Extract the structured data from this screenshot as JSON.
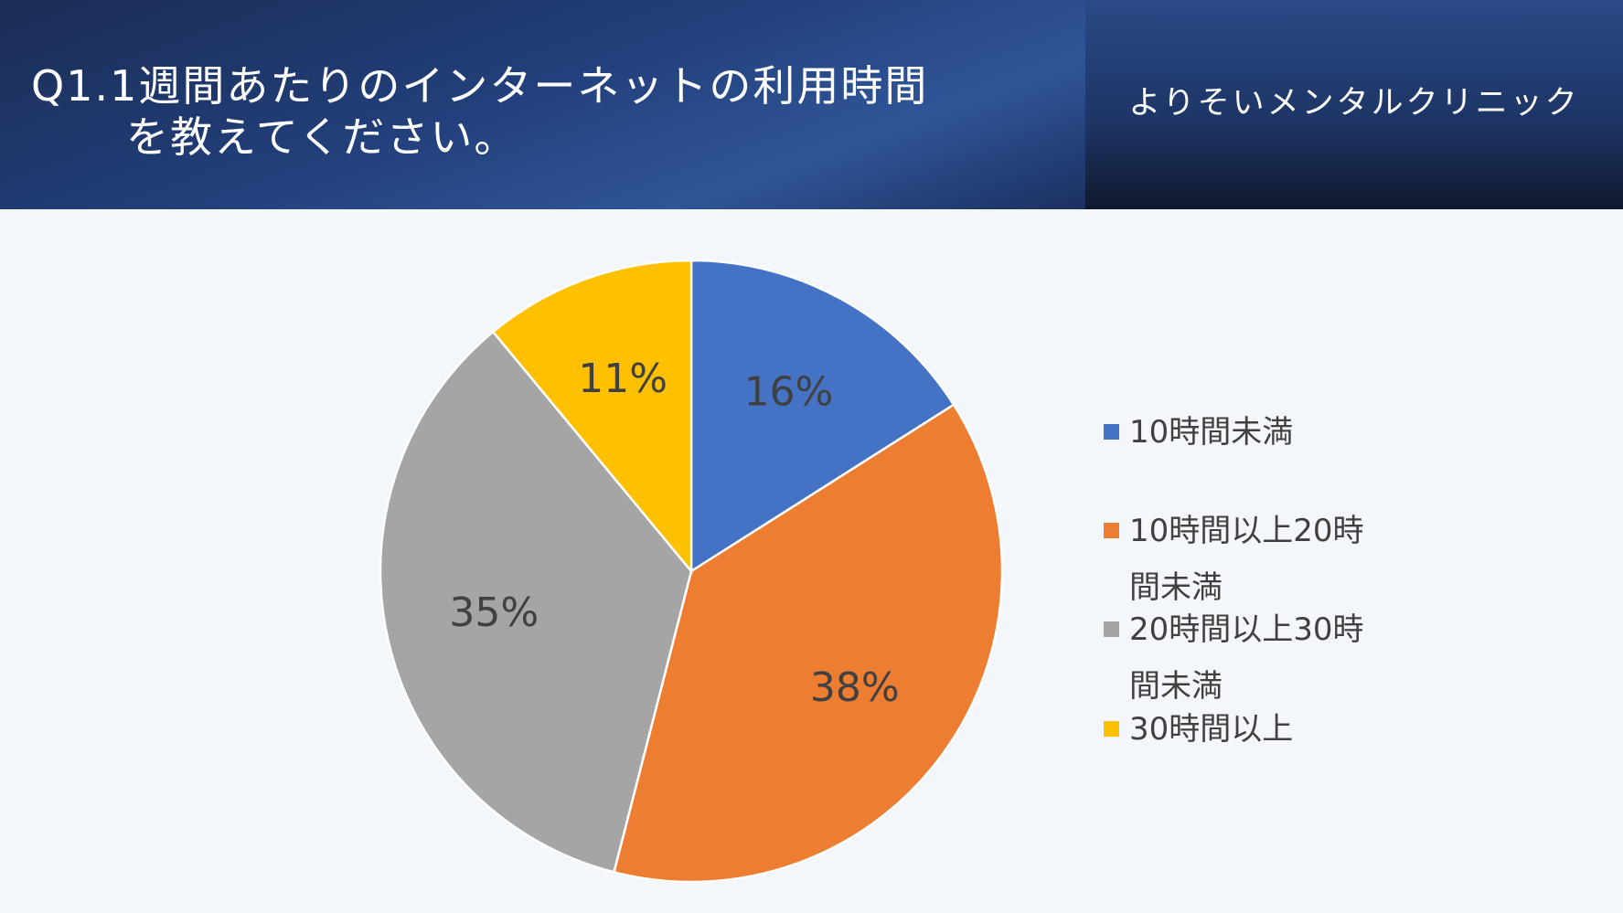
{
  "header": {
    "clinic": "よりそいメンタルクリニック"
  },
  "chart_data": {
    "type": "pie",
    "title": [
      "Q1.1週間あたりのインターネットの利用時間",
      "を教えてください。"
    ],
    "categories": [
      "10時間未満",
      "10時間以上20時間未満",
      "20時間以上30時間未満",
      "30時間以上"
    ],
    "values": [
      16,
      38,
      35,
      11
    ],
    "value_labels": [
      "16%",
      "38%",
      "35%",
      "11%"
    ],
    "colors": [
      "#4472c4",
      "#ed7d31",
      "#a5a5a5",
      "#ffc000"
    ],
    "legend": "right"
  }
}
